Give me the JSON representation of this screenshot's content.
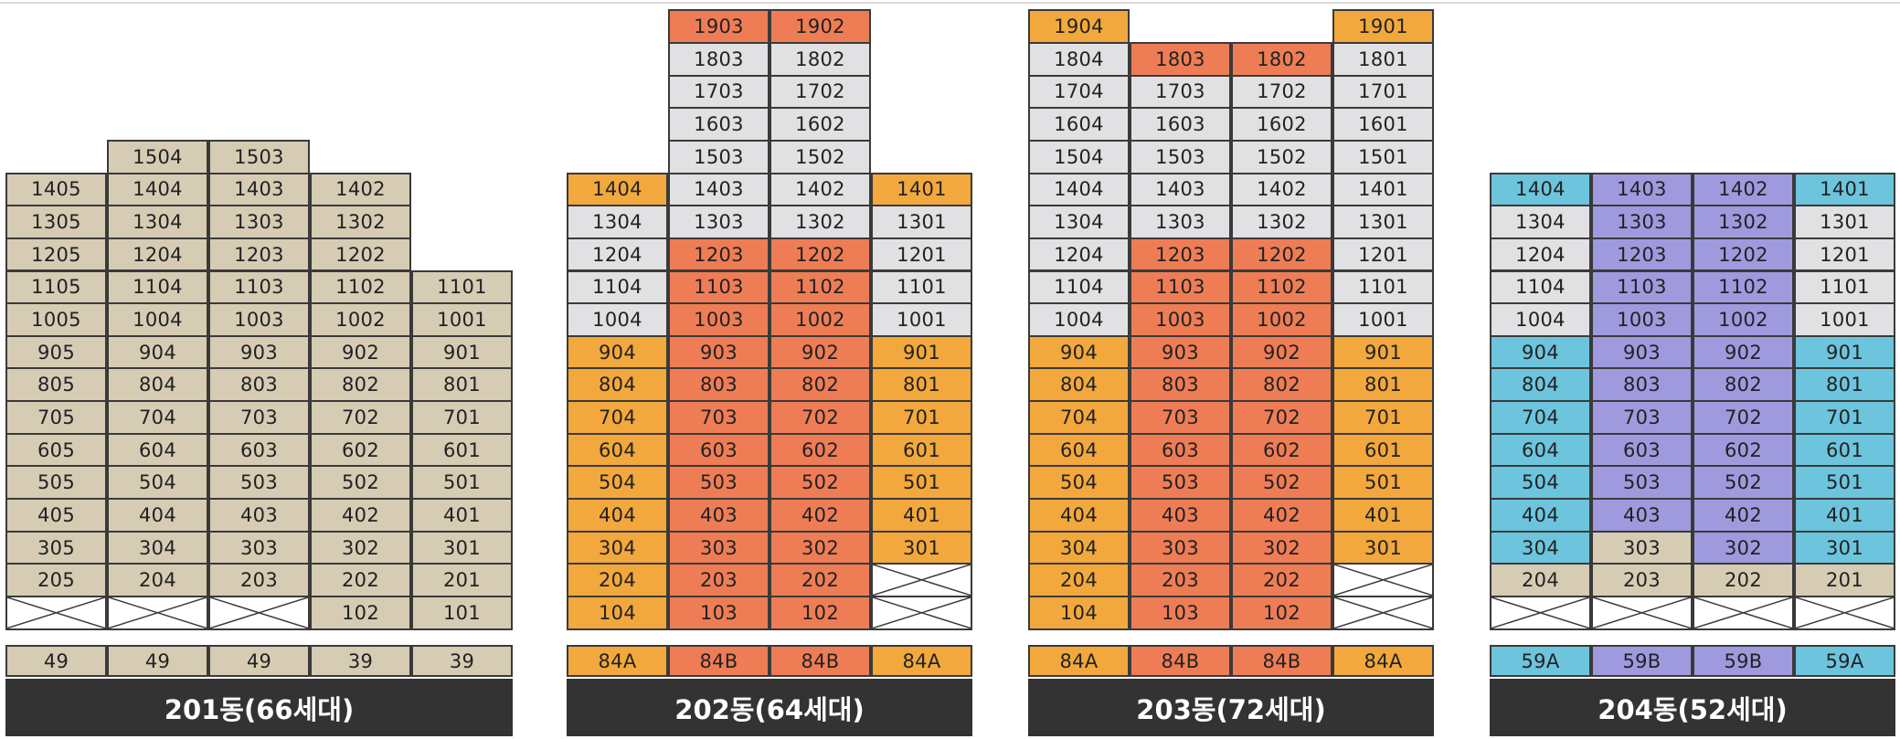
{
  "colors": {
    "tan": "#d6ccb4",
    "gray": "#e1e1e3",
    "orange": "#f2a83c",
    "red": "#ee7d56",
    "cyan": "#6cc4dd",
    "purple": "#9f9ade",
    "none": "#ffffff",
    "label_bg": "#333333"
  },
  "buildings": [
    {
      "label": "201동(66세대)",
      "columns": [
        {
          "type": "49",
          "color": "tan",
          "units": [
            "",
            "205",
            "305",
            "405",
            "505",
            "605",
            "705",
            "805",
            "905",
            "1005",
            "1105",
            "1205",
            "1305",
            "1405"
          ]
        },
        {
          "type": "49",
          "color": "tan",
          "units": [
            "",
            "204",
            "304",
            "404",
            "504",
            "604",
            "704",
            "804",
            "904",
            "1004",
            "1104",
            "1204",
            "1304",
            "1404",
            "1504"
          ]
        },
        {
          "type": "49",
          "color": "tan",
          "units": [
            "",
            "203",
            "303",
            "403",
            "503",
            "603",
            "703",
            "803",
            "903",
            "1003",
            "1103",
            "1203",
            "1303",
            "1403",
            "1503"
          ]
        },
        {
          "type": "39",
          "color": "tan",
          "units": [
            "102",
            "202",
            "302",
            "402",
            "502",
            "602",
            "702",
            "802",
            "902",
            "1002",
            "1102",
            "1202",
            "1302",
            "1402"
          ]
        },
        {
          "type": "39",
          "color": "tan",
          "units": [
            "101",
            "201",
            "301",
            "401",
            "501",
            "601",
            "701",
            "801",
            "901",
            "1001",
            "1101"
          ]
        }
      ]
    },
    {
      "label": "202동(64세대)",
      "columns": [
        {
          "type": "84A",
          "color": "orange",
          "units": [
            "104",
            "204",
            "304",
            "404",
            "504",
            "604",
            "704",
            "804",
            "904",
            "1004",
            "1104",
            "1204",
            "1304",
            "1404"
          ],
          "cell_colors": {
            "9": "gray",
            "10": "gray",
            "11": "gray",
            "12": "gray"
          }
        },
        {
          "type": "84B",
          "color": "red",
          "units": [
            "103",
            "203",
            "303",
            "403",
            "503",
            "603",
            "703",
            "803",
            "903",
            "1003",
            "1103",
            "1203",
            "1303",
            "1403",
            "1503",
            "1603",
            "1703",
            "1803",
            "1903"
          ],
          "cell_colors": {
            "12": "gray",
            "13": "gray",
            "14": "gray",
            "15": "gray",
            "16": "gray",
            "17": "gray"
          }
        },
        {
          "type": "84B",
          "color": "red",
          "units": [
            "102",
            "202",
            "302",
            "402",
            "502",
            "602",
            "702",
            "802",
            "902",
            "1002",
            "1102",
            "1202",
            "1302",
            "1402",
            "1502",
            "1602",
            "1702",
            "1802",
            "1902"
          ],
          "cell_colors": {
            "12": "gray",
            "13": "gray",
            "14": "gray",
            "15": "gray",
            "16": "gray",
            "17": "gray"
          }
        },
        {
          "type": "84A",
          "color": "orange",
          "units": [
            "",
            "",
            "301",
            "401",
            "501",
            "601",
            "701",
            "801",
            "901",
            "1001",
            "1101",
            "1201",
            "1301",
            "1401"
          ],
          "cell_colors": {
            "9": "gray",
            "10": "gray",
            "11": "gray",
            "12": "gray"
          }
        }
      ]
    },
    {
      "label": "203동(72세대)",
      "columns": [
        {
          "type": "84A",
          "color": "orange",
          "units": [
            "104",
            "204",
            "304",
            "404",
            "504",
            "604",
            "704",
            "804",
            "904",
            "1004",
            "1104",
            "1204",
            "1304",
            "1404",
            "1504",
            "1604",
            "1704",
            "1804",
            "1904"
          ],
          "cell_colors": {
            "9": "gray",
            "10": "gray",
            "11": "gray",
            "12": "gray",
            "13": "gray",
            "14": "gray",
            "15": "gray",
            "16": "gray",
            "17": "gray"
          }
        },
        {
          "type": "84B",
          "color": "red",
          "units": [
            "103",
            "203",
            "303",
            "403",
            "503",
            "603",
            "703",
            "803",
            "903",
            "1003",
            "1103",
            "1203",
            "1303",
            "1403",
            "1503",
            "1603",
            "1703",
            "1803"
          ],
          "cell_colors": {
            "12": "gray",
            "13": "gray",
            "14": "gray",
            "15": "gray",
            "16": "gray"
          }
        },
        {
          "type": "84B",
          "color": "red",
          "units": [
            "102",
            "202",
            "302",
            "402",
            "502",
            "602",
            "702",
            "802",
            "902",
            "1002",
            "1102",
            "1202",
            "1302",
            "1402",
            "1502",
            "1602",
            "1702",
            "1802"
          ],
          "cell_colors": {
            "12": "gray",
            "13": "gray",
            "14": "gray",
            "15": "gray",
            "16": "gray"
          }
        },
        {
          "type": "84A",
          "color": "orange",
          "units": [
            "",
            "",
            "301",
            "401",
            "501",
            "601",
            "701",
            "801",
            "901",
            "1001",
            "1101",
            "1201",
            "1301",
            "1401",
            "1501",
            "1601",
            "1701",
            "1801",
            "1901"
          ],
          "cell_colors": {
            "9": "gray",
            "10": "gray",
            "11": "gray",
            "12": "gray",
            "13": "gray",
            "14": "gray",
            "15": "gray",
            "16": "gray",
            "17": "gray"
          }
        }
      ]
    },
    {
      "label": "204동(52세대)",
      "columns": [
        {
          "type": "59A",
          "color": "cyan",
          "units": [
            "",
            "204",
            "304",
            "404",
            "504",
            "604",
            "704",
            "804",
            "904",
            "1004",
            "1104",
            "1204",
            "1304",
            "1404"
          ],
          "cell_colors": {
            "1": "tan",
            "9": "gray",
            "10": "gray",
            "11": "gray",
            "12": "gray"
          }
        },
        {
          "type": "59B",
          "color": "purple",
          "units": [
            "",
            "203",
            "303",
            "403",
            "503",
            "603",
            "703",
            "803",
            "903",
            "1003",
            "1103",
            "1203",
            "1303",
            "1403"
          ],
          "cell_colors": {
            "1": "tan",
            "2": "tan"
          }
        },
        {
          "type": "59B",
          "color": "purple",
          "units": [
            "",
            "202",
            "302",
            "402",
            "502",
            "602",
            "702",
            "802",
            "902",
            "1002",
            "1102",
            "1202",
            "1302",
            "1402"
          ],
          "cell_colors": {
            "1": "tan"
          }
        },
        {
          "type": "59A",
          "color": "cyan",
          "units": [
            "",
            "201",
            "301",
            "401",
            "501",
            "601",
            "701",
            "801",
            "901",
            "1001",
            "1101",
            "1201",
            "1301",
            "1401"
          ],
          "cell_colors": {
            "1": "tan",
            "9": "gray",
            "10": "gray",
            "11": "gray",
            "12": "gray"
          }
        }
      ]
    }
  ]
}
